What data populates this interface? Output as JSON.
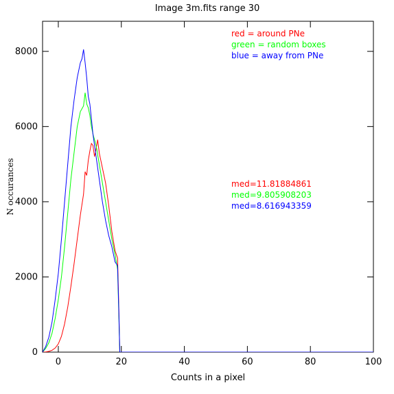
{
  "chart_data": {
    "type": "line",
    "title": "Image 3m.fits   range 30",
    "xlabel": "Counts in a pixel",
    "ylabel": "N occurances",
    "xlim": [
      -5,
      100
    ],
    "ylim": [
      0,
      8800
    ],
    "xticks": [
      0,
      20,
      40,
      60,
      80,
      100
    ],
    "yticks": [
      0,
      2000,
      4000,
      6000,
      8000
    ],
    "grid": false,
    "legend_position": "top-right",
    "series": [
      {
        "name": "red = around PNe",
        "color": "#ff0000",
        "median_label": "med=11.81884861",
        "x": [
          -5,
          -4,
          -3,
          -2,
          -1,
          0,
          1,
          2,
          3,
          4,
          5,
          6,
          7,
          8,
          8.5,
          9,
          9.5,
          10,
          10.5,
          11,
          11.5,
          12,
          12.5,
          13,
          13.5,
          14,
          15,
          16,
          17,
          18,
          18.8,
          19.2,
          19.5,
          100
        ],
        "y": [
          0,
          5,
          20,
          50,
          110,
          220,
          420,
          750,
          1200,
          1750,
          2350,
          3000,
          3650,
          4200,
          4800,
          4700,
          5100,
          5350,
          5550,
          5500,
          5200,
          5400,
          5650,
          5300,
          5100,
          4900,
          4500,
          3900,
          3200,
          2700,
          2500,
          1200,
          0,
          0
        ]
      },
      {
        "name": "green = random boxes",
        "color": "#00ff00",
        "median_label": "med=9.805908203",
        "x": [
          -5,
          -4,
          -3,
          -2,
          -1,
          0,
          1,
          2,
          3,
          4,
          5,
          6,
          7,
          8,
          8.5,
          9,
          9.5,
          10,
          10.5,
          11,
          12,
          13,
          14,
          15,
          16,
          17,
          18,
          18.8,
          19.2,
          19.5,
          100
        ],
        "y": [
          0,
          100,
          250,
          500,
          900,
          1400,
          2000,
          2800,
          3700,
          4600,
          5300,
          6000,
          6400,
          6550,
          6900,
          6600,
          6500,
          6300,
          6000,
          5800,
          5500,
          5000,
          4500,
          4000,
          3500,
          3000,
          2600,
          2200,
          1000,
          0,
          0
        ]
      },
      {
        "name": "blue = away from PNe",
        "color": "#0000ff",
        "median_label": "med=8.616943359",
        "x": [
          -5,
          -4,
          -3,
          -2,
          -1,
          0,
          1,
          2,
          3,
          4,
          5,
          6,
          7,
          7.5,
          8,
          8.5,
          9,
          9.5,
          10,
          10.5,
          11,
          12,
          13,
          14,
          15,
          16,
          17,
          18,
          18.8,
          19.2,
          19.5,
          100
        ],
        "y": [
          0,
          150,
          400,
          800,
          1400,
          2100,
          3000,
          4000,
          5000,
          6000,
          6700,
          7300,
          7700,
          7800,
          8050,
          7700,
          7300,
          6800,
          6600,
          6200,
          5800,
          5200,
          4600,
          4000,
          3500,
          3100,
          2800,
          2400,
          2300,
          1100,
          0,
          0
        ]
      }
    ]
  }
}
